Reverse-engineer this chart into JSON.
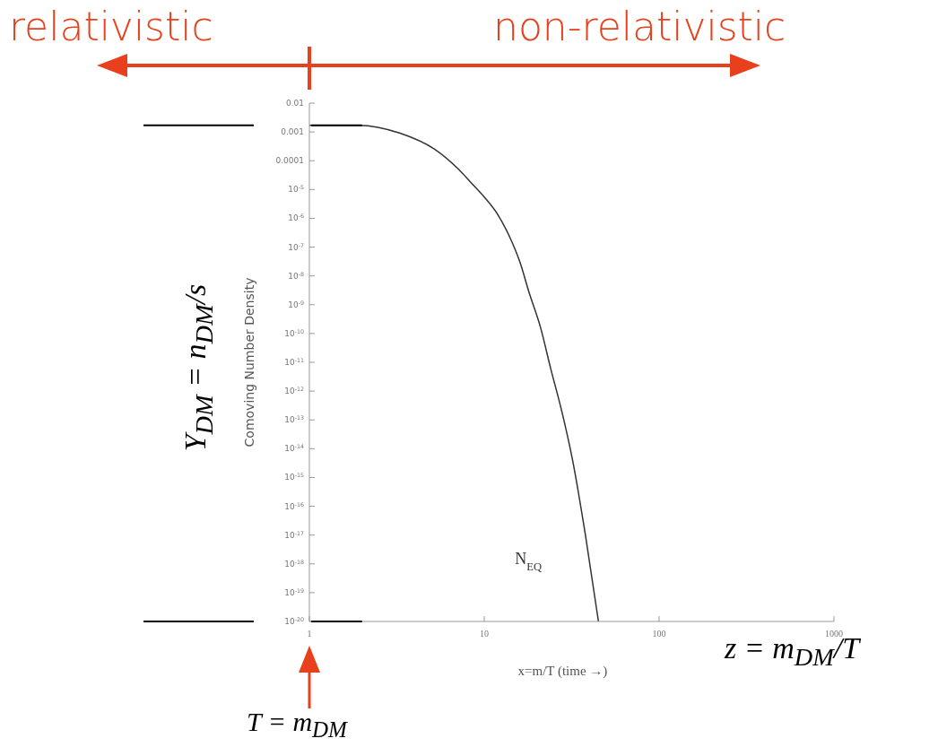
{
  "chart_data": {
    "type": "line",
    "xlabel": "x=m/T (time →)",
    "ylabel": "Comoving Number Density",
    "x": [
      1,
      1.9,
      3.3,
      5.2,
      7.4,
      8.5,
      10,
      12,
      14,
      16,
      18,
      21,
      24,
      28,
      32,
      38,
      45
    ],
    "series": [
      {
        "name": "N$_{EQ}$",
        "color": "#333333",
        "values": [
          0.0017,
          0.0017,
          0.0009,
          0.00025,
          4e-05,
          1.6e-05,
          5.5e-06,
          1.3e-06,
          2.2e-07,
          3e-08,
          2.8e-09,
          1.6e-10,
          6e-12,
          1.6e-13,
          4e-15,
          9e-18,
          1e-20
        ]
      }
    ],
    "log": "xy",
    "xlim": [
      1,
      1000
    ],
    "xticks": [
      1,
      10,
      100,
      1000
    ],
    "ylim": [
      1e-20,
      0.01
    ],
    "yticks": [
      0.01,
      0.001,
      0.0001,
      {
        "value": 1e-05,
        "label": "10$^{-5}$"
      },
      {
        "value": 1e-06,
        "label": "10$^{-6}$"
      },
      {
        "value": 1e-07,
        "label": "10$^{-7}$"
      },
      {
        "value": 1e-08,
        "label": "10$^{-8}$"
      },
      {
        "value": 1e-09,
        "label": "10$^{-9}$"
      },
      {
        "value": 1e-10,
        "label": "10$^{-10}$"
      },
      {
        "value": 1e-11,
        "label": "10$^{-11}$"
      },
      {
        "value": 1e-12,
        "label": "10$^{-12}$"
      },
      {
        "value": 1e-13,
        "label": "10$^{-13}$"
      },
      {
        "value": 1e-14,
        "label": "10$^{-14}$"
      },
      {
        "value": 1e-15,
        "label": "10$^{-15}$"
      },
      {
        "value": 1e-16,
        "label": "10$^{-16}$"
      },
      {
        "value": 1e-17,
        "label": "10$^{-17}$"
      },
      {
        "value": 1e-18,
        "label": "10$^{-18}$"
      },
      {
        "value": 1e-19,
        "label": "10$^{-19}$"
      },
      {
        "value": 1e-20,
        "label": "10$^{-20}$"
      }
    ],
    "grid": false,
    "legend": false,
    "marker": "none",
    "line_style": "solid",
    "ref_lines": [
      {
        "axis": "y",
        "value": 0.0017,
        "color": "#000000"
      },
      {
        "axis": "y",
        "value": 1e-20,
        "color": "#000000"
      }
    ],
    "annotations": [
      "relativistic",
      "non-relativistic",
      "Y$_{DM}$ = n$_{DM}$/s",
      "z = m$_{DM}$/T",
      "T = m$_{DM}$"
    ]
  }
}
